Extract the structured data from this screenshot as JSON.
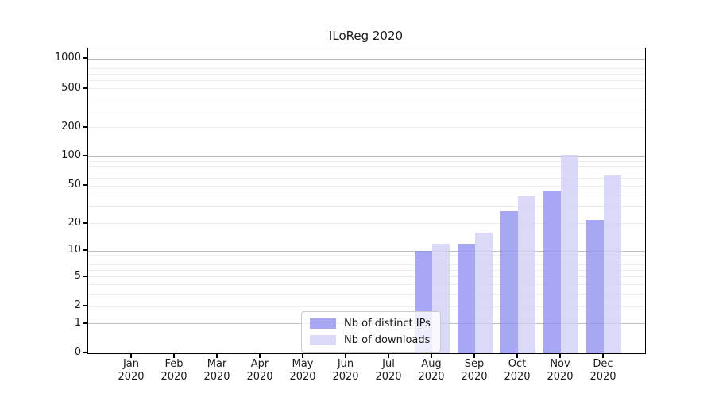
{
  "title": "ILoReg 2020",
  "chart_data": {
    "type": "bar",
    "title": "ILoReg 2020",
    "categories": [
      "Jan",
      "Feb",
      "Mar",
      "Apr",
      "May",
      "Jun",
      "Jul",
      "Aug",
      "Sep",
      "Oct",
      "Nov",
      "Dec"
    ],
    "category_year": "2020",
    "series": [
      {
        "name": "Nb of distinct IPs",
        "color": "#a7a7f3",
        "fill": "rgba(145,145,240,0.8)",
        "values": [
          0,
          0,
          0,
          0,
          0,
          0,
          0,
          10,
          12,
          27,
          45,
          22
        ]
      },
      {
        "name": "Nb of downloads",
        "color": "#dadaf8",
        "fill": "rgba(209,209,246,0.8)",
        "values": [
          0,
          0,
          0,
          0,
          0,
          0,
          0,
          12,
          16,
          39,
          105,
          64
        ]
      }
    ],
    "xlabel": "",
    "ylabel": "",
    "yscale": "log10(1+x)",
    "yticks": [
      0,
      1,
      2,
      5,
      10,
      20,
      50,
      100,
      200,
      500,
      1000
    ],
    "ylim": [
      0,
      1280
    ],
    "grid": "horizontal",
    "legend_position": "bottom-center-inside"
  },
  "legend": {
    "items": [
      {
        "label": "Nb of distinct IPs"
      },
      {
        "label": "Nb of downloads"
      }
    ]
  }
}
